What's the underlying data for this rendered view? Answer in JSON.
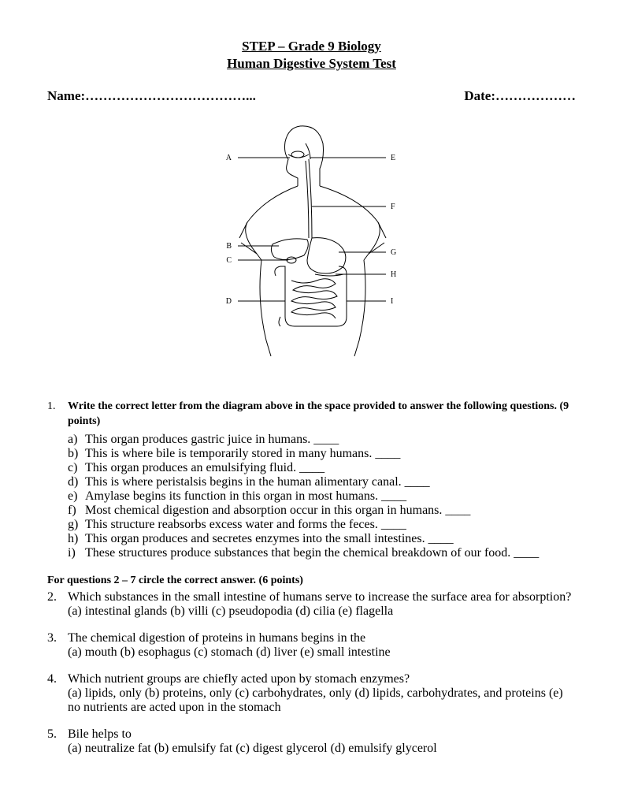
{
  "header": {
    "line1": "STEP – Grade 9 Biology",
    "line2": "Human Digestive System Test"
  },
  "fields": {
    "name_label": "Name:",
    "name_dots": "………………………………...",
    "date_label": "Date:",
    "date_dots": "………………"
  },
  "diagram": {
    "labels": [
      "A",
      "B",
      "C",
      "D",
      "E",
      "F",
      "G",
      "H",
      "I"
    ],
    "stroke": "#000000",
    "fill": "#ffffff",
    "font_size": 10
  },
  "q1": {
    "number": "1.",
    "stem": "Write the correct letter from the diagram above in the space provided to answer the following questions. (9 points)",
    "items": [
      {
        "lbl": "a)",
        "text": "This organ produces gastric juice in humans. ____"
      },
      {
        "lbl": "b)",
        "text": "This is where bile is temporarily stored in many humans. ____"
      },
      {
        "lbl": "c)",
        "text": "This organ produces an emulsifying fluid. ____"
      },
      {
        "lbl": "d)",
        "text": "This is where peristalsis begins in the human alimentary canal. ____"
      },
      {
        "lbl": "e)",
        "text": "Amylase begins its function in this organ in most humans. ____"
      },
      {
        "lbl": "f)",
        "text": "Most chemical digestion and absorption occur in this organ in humans. ____"
      },
      {
        "lbl": "g)",
        "text": "This structure reabsorbs excess water and forms the feces. ____"
      },
      {
        "lbl": "h)",
        "text": "This organ produces and secretes enzymes into the small intestines. ____"
      },
      {
        "lbl": "i)",
        "text": "These structures produce substances that begin the chemical breakdown of our food. ____"
      }
    ]
  },
  "section2": {
    "header": "For questions 2 – 7 circle the correct answer. (6 points)",
    "questions": [
      {
        "num": "2.",
        "stem": "Which substances in the small intestine of humans serve to increase the surface area for absorption?",
        "opts": "(a) intestinal glands (b) villi (c) pseudopodia (d) cilia (e) flagella"
      },
      {
        "num": "3.",
        "stem": "The chemical digestion of proteins in humans begins in the",
        "opts": "(a) mouth (b) esophagus (c) stomach (d) liver (e) small intestine"
      },
      {
        "num": "4.",
        "stem": "Which nutrient groups are chiefly acted upon by stomach enzymes?",
        "opts": "(a) lipids, only (b) proteins, only (c) carbohydrates, only (d) lipids, carbohydrates, and proteins (e) no nutrients are acted upon in the stomach"
      },
      {
        "num": "5.",
        "stem": "Bile helps to",
        "opts": "(a) neutralize fat (b) emulsify fat (c) digest glycerol (d) emulsify glycerol"
      }
    ]
  }
}
